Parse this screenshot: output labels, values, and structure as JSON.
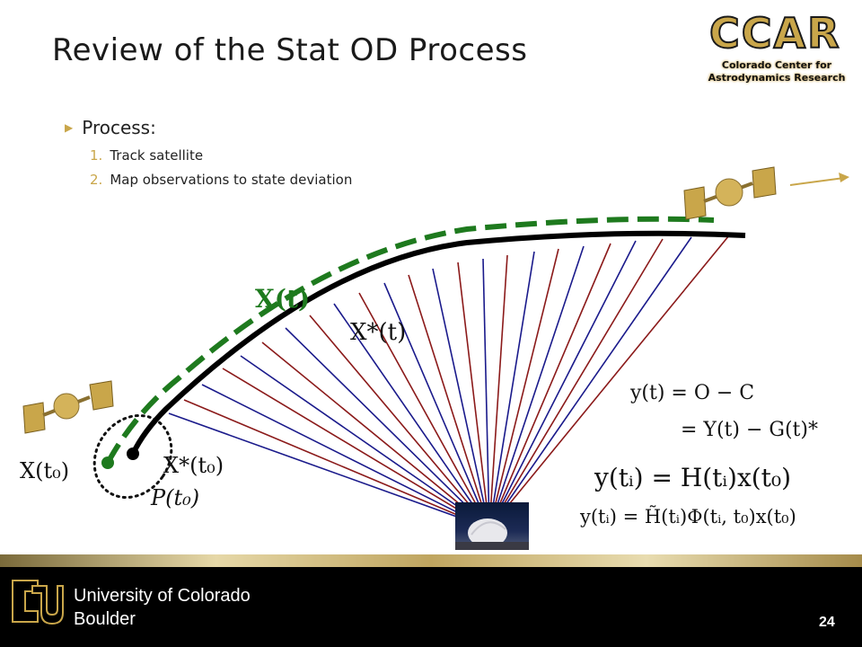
{
  "slide": {
    "title": "Review of the Stat OD Process",
    "page_number": "24"
  },
  "logo": {
    "name": "CCAR",
    "subtitle_line1": "Colorado Center for",
    "subtitle_line2": "Astrodynamics Research"
  },
  "bullets": {
    "main": "Process:",
    "items": [
      {
        "num": "1.",
        "text": "Track satellite"
      },
      {
        "num": "2.",
        "text": "Map observations to state deviation"
      }
    ]
  },
  "labels": {
    "X_t": "X(t)",
    "X_star_t": "X*(t)",
    "X_t0": "X(t₀)",
    "X_star_t0": "X*(t₀)",
    "P_t0": "P(t₀)"
  },
  "equations": {
    "eq1": "y(t) = O − C",
    "eq2": "= Y(t) − G(t)*",
    "eq3": "y(tᵢ) = H(tᵢ)x(t₀)",
    "eq4": "y(tᵢ) = H̃(tᵢ)Φ(tᵢ, t₀)x(t₀)"
  },
  "colors": {
    "reference_orbit": "#000000",
    "true_orbit": "#1e7a1e",
    "ray_red": "#8b1a1a",
    "ray_blue": "#1a1a8b",
    "accent_gold": "#c9a64a"
  },
  "footer": {
    "university_line1": "University of Colorado",
    "university_line2": "Boulder"
  }
}
